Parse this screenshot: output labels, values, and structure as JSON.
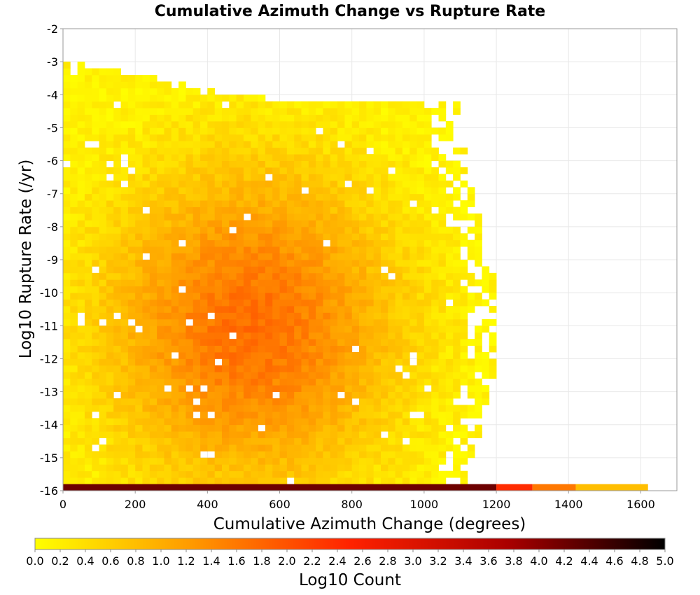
{
  "chart_data": {
    "type": "heatmap",
    "title": "Cumulative Azimuth Change vs Rupture Rate",
    "xlabel": "Cumulative Azimuth Change (degrees)",
    "ylabel": "Log10 Rupture Rate (/yr)",
    "xlim": [
      0,
      1700
    ],
    "ylim": [
      -16,
      -2
    ],
    "xticks": [
      0,
      200,
      400,
      600,
      800,
      1000,
      1200,
      1400,
      1600
    ],
    "yticks": [
      -2,
      -3,
      -4,
      -5,
      -6,
      -7,
      -8,
      -9,
      -10,
      -11,
      -12,
      -13,
      -14,
      -15,
      -16
    ],
    "bin_width_x": 20,
    "bin_height_y": 0.2,
    "grid": true,
    "colorbar": {
      "label": "Log10 Count",
      "min": 0.0,
      "max": 5.0,
      "ticks": [
        "0.0",
        "0.2",
        "0.4",
        "0.6",
        "0.8",
        "1.0",
        "1.2",
        "1.4",
        "1.6",
        "1.8",
        "2.0",
        "2.2",
        "2.4",
        "2.6",
        "2.8",
        "3.0",
        "3.2",
        "3.4",
        "3.6",
        "3.8",
        "4.0",
        "4.2",
        "4.4",
        "4.6",
        "4.8",
        "5.0"
      ],
      "colors": [
        "#ffff00",
        "#ff9900",
        "#ff2200",
        "#aa0000",
        "#000000"
      ]
    },
    "bottom_row": {
      "y_range": [
        -16,
        -15.8
      ],
      "segments": [
        {
          "x": [
            0,
            1200
          ],
          "value": 4.2
        },
        {
          "x": [
            1200,
            1300
          ],
          "value": 2.4
        },
        {
          "x": [
            1300,
            1420
          ],
          "value": 1.6
        },
        {
          "x": [
            1420,
            1620
          ],
          "value": 0.8
        }
      ]
    },
    "density_model": {
      "peak_x": 520,
      "peak_y": -11,
      "peak_value": 1.7,
      "extent_x": [
        0,
        1200
      ],
      "extent_y": [
        -15.8,
        -4
      ],
      "upper_edge_y": -3
    }
  }
}
